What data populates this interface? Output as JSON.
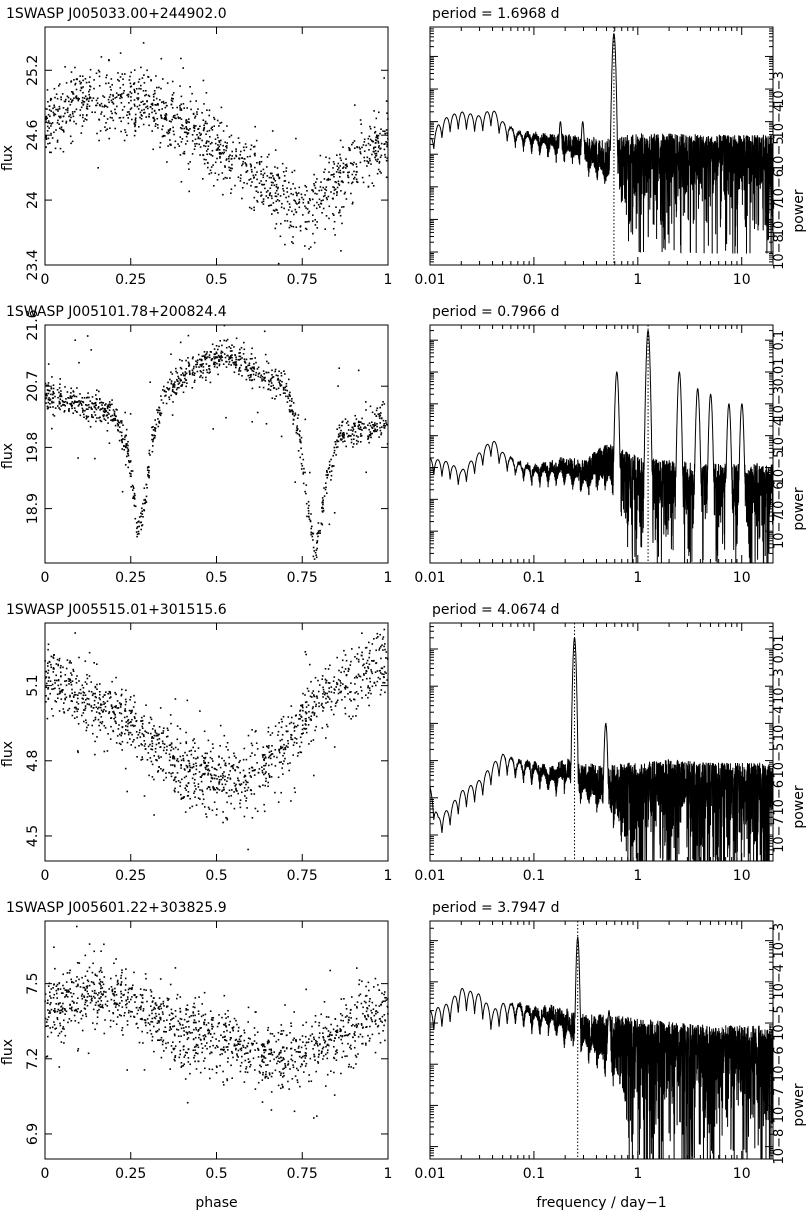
{
  "chart_data": [
    {
      "type": "scatter",
      "title": "1SWASP J005033.00+244902.0",
      "xlabel": "",
      "ylabel": "flux",
      "xlim": [
        0,
        1
      ],
      "ylim": [
        23.4,
        25.6
      ],
      "xticks": [
        "0",
        "0.25",
        "0.5",
        "0.75",
        "1"
      ],
      "yticks": [
        {
          "value": 24.0,
          "label": "24"
        },
        {
          "value": 24.6,
          "label": "24.6"
        },
        {
          "value": 25.2,
          "label": "25.2"
        },
        {
          "value": 23.4,
          "label": "23.4"
        }
      ],
      "series": [
        {
          "trend_x": [
            0.0,
            0.1,
            0.2,
            0.3,
            0.4,
            0.5,
            0.6,
            0.7,
            0.75,
            0.8,
            0.9,
            1.0
          ],
          "trend_y": [
            24.75,
            24.9,
            24.92,
            24.85,
            24.7,
            24.5,
            24.25,
            24.0,
            23.95,
            24.0,
            24.3,
            24.55
          ],
          "scatter": 0.35,
          "n_points": 1300
        }
      ]
    },
    {
      "type": "line",
      "title": "period =    1.6968  d",
      "xlabel": "",
      "ylabel": "power",
      "xscale": "log",
      "yscale": "log",
      "xlim": [
        0.01,
        20
      ],
      "ylim": [
        4e-09,
        0.08
      ],
      "xticks": [
        "0.01",
        "0.1",
        "1",
        "10"
      ],
      "yticks": [
        "10−8",
        "10−7",
        "10−6",
        "10−5",
        "10−4",
        "10−3"
      ],
      "peak_frequency": 0.589,
      "series": [
        {
          "envelope_x": [
            0.01,
            0.012,
            0.015,
            0.02,
            0.03,
            0.04,
            0.05,
            0.07,
            0.1,
            0.15,
            0.2,
            0.3,
            0.5,
            1,
            2,
            5,
            10,
            20
          ],
          "envelope_y": [
            3e-05,
            8e-05,
            0.00015,
            0.0002,
            0.00015,
            0.00025,
            0.0001,
            5e-05,
            4e-05,
            3e-05,
            3e-05,
            2e-05,
            1.5e-05,
            2e-05,
            2e-05,
            1.8e-05,
            1.8e-05,
            1.8e-05
          ],
          "peaks": [
            {
              "x": 0.589,
              "y": 0.05
            },
            {
              "x": 0.295,
              "y": 0.0001
            },
            {
              "x": 0.18,
              "y": 0.0001
            }
          ]
        }
      ]
    },
    {
      "type": "scatter",
      "title": "1SWASP J005101.78+200824.4",
      "xlabel": "",
      "ylabel": "flux",
      "xlim": [
        0,
        1
      ],
      "ylim": [
        18.1,
        21.6
      ],
      "xticks": [
        "0",
        "0.25",
        "0.5",
        "0.75",
        "1"
      ],
      "yticks": [
        {
          "value": 18.9,
          "label": "18.9"
        },
        {
          "value": 19.8,
          "label": "19.8"
        },
        {
          "value": 20.7,
          "label": "20.7"
        },
        {
          "value": 21.6,
          "label": "21.6"
        }
      ],
      "series": [
        {
          "trend_x": [
            0.0,
            0.1,
            0.2,
            0.24,
            0.27,
            0.29,
            0.31,
            0.35,
            0.45,
            0.52,
            0.6,
            0.7,
            0.74,
            0.77,
            0.79,
            0.82,
            0.86,
            0.95,
            1.0
          ],
          "trend_y": [
            20.55,
            20.45,
            20.3,
            19.8,
            18.6,
            18.9,
            19.9,
            20.6,
            21.0,
            21.15,
            20.95,
            20.7,
            20.0,
            18.8,
            18.2,
            19.3,
            20.0,
            20.1,
            20.25
          ],
          "scatter": 0.25,
          "n_points": 1200
        }
      ]
    },
    {
      "type": "line",
      "title": "period =    0.7966  d",
      "xlabel": "",
      "ylabel": "power",
      "xscale": "log",
      "yscale": "log",
      "xlim": [
        0.01,
        20
      ],
      "ylim": [
        1e-08,
        0.3
      ],
      "xticks": [
        "0.01",
        "0.1",
        "1",
        "10"
      ],
      "yticks": [
        "10−7",
        "10−6",
        "10−5",
        "10−4",
        "10−3",
        "0.01",
        "0.1"
      ],
      "peak_frequency": 1.255,
      "series": [
        {
          "envelope_x": [
            0.01,
            0.015,
            0.02,
            0.03,
            0.04,
            0.05,
            0.07,
            0.1,
            0.15,
            0.2,
            0.3,
            0.5,
            1,
            2,
            5,
            10,
            20
          ],
          "envelope_y": [
            2e-05,
            1.5e-05,
            8e-06,
            3e-05,
            8e-05,
            3e-05,
            1.5e-05,
            1e-05,
            1.2e-05,
            1.5e-05,
            1e-05,
            3e-05,
            1e-05,
            8e-06,
            6e-06,
            6e-06,
            6e-06
          ],
          "peaks": [
            {
              "x": 1.255,
              "y": 0.2
            },
            {
              "x": 0.628,
              "y": 0.01
            },
            {
              "x": 2.51,
              "y": 0.01
            },
            {
              "x": 3.77,
              "y": 0.003
            },
            {
              "x": 5.02,
              "y": 0.002
            },
            {
              "x": 7.53,
              "y": 0.001
            },
            {
              "x": 10.04,
              "y": 0.001
            }
          ]
        }
      ]
    },
    {
      "type": "scatter",
      "title": "1SWASP J005515.01+301515.6",
      "xlabel": "",
      "ylabel": "flux",
      "xlim": [
        0,
        1
      ],
      "ylim": [
        4.4,
        5.35
      ],
      "xticks": [
        "0",
        "0.25",
        "0.5",
        "0.75",
        "1"
      ],
      "yticks": [
        {
          "value": 4.5,
          "label": "4.5"
        },
        {
          "value": 4.8,
          "label": "4.8"
        },
        {
          "value": 5.1,
          "label": "5.1"
        }
      ],
      "series": [
        {
          "trend_x": [
            0.0,
            0.05,
            0.1,
            0.2,
            0.3,
            0.4,
            0.5,
            0.58,
            0.65,
            0.72,
            0.8,
            0.9,
            1.0
          ],
          "trend_y": [
            5.15,
            5.1,
            5.05,
            5.0,
            4.88,
            4.78,
            4.72,
            4.7,
            4.8,
            4.9,
            5.05,
            5.12,
            5.2
          ],
          "scatter": 0.15,
          "n_points": 1300
        }
      ]
    },
    {
      "type": "line",
      "title": "period =    4.0674  d",
      "xlabel": "",
      "ylabel": "power",
      "xscale": "log",
      "yscale": "log",
      "xlim": [
        0.01,
        20
      ],
      "ylim": [
        2e-08,
        0.05
      ],
      "xticks": [
        "0.01",
        "0.1",
        "1",
        "10"
      ],
      "yticks": [
        "10−7",
        "10−6",
        "10−5",
        "10−4",
        "10−3",
        "0.01"
      ],
      "peak_frequency": 0.246,
      "series": [
        {
          "envelope_x": [
            0.01,
            0.012,
            0.015,
            0.02,
            0.03,
            0.04,
            0.05,
            0.07,
            0.1,
            0.15,
            0.2,
            0.3,
            0.5,
            1,
            2,
            5,
            10,
            20
          ],
          "envelope_y": [
            2e-06,
            3e-07,
            5e-07,
            1.5e-06,
            3e-06,
            8e-06,
            1.5e-05,
            1e-05,
            8e-06,
            5e-06,
            8e-06,
            5e-06,
            4e-06,
            4e-06,
            5e-06,
            4e-06,
            4e-06,
            4e-06
          ],
          "peaks": [
            {
              "x": 0.246,
              "y": 0.02
            },
            {
              "x": 0.492,
              "y": 0.0001
            }
          ]
        }
      ]
    },
    {
      "type": "scatter",
      "title": "1SWASP J005601.22+303825.9",
      "xlabel": "phase",
      "ylabel": "flux",
      "xlim": [
        0,
        1
      ],
      "ylim": [
        6.8,
        7.75
      ],
      "xticks": [
        "0",
        "0.25",
        "0.5",
        "0.75",
        "1"
      ],
      "yticks": [
        {
          "value": 6.9,
          "label": "6.9"
        },
        {
          "value": 7.2,
          "label": "7.2"
        },
        {
          "value": 7.5,
          "label": "7.5"
        }
      ],
      "series": [
        {
          "trend_x": [
            0.0,
            0.1,
            0.18,
            0.3,
            0.4,
            0.5,
            0.6,
            0.7,
            0.8,
            0.9,
            1.0
          ],
          "trend_y": [
            7.38,
            7.45,
            7.48,
            7.38,
            7.3,
            7.28,
            7.22,
            7.2,
            7.25,
            7.32,
            7.4
          ],
          "scatter": 0.15,
          "n_points": 1300
        }
      ]
    },
    {
      "type": "line",
      "title": "period =    3.7947  d",
      "xlabel": "frequency  /  day−1",
      "ylabel": "power",
      "xscale": "log",
      "yscale": "log",
      "xlim": [
        0.01,
        20
      ],
      "ylim": [
        5e-09,
        0.003
      ],
      "xticks": [
        "0.01",
        "0.1",
        "1",
        "10"
      ],
      "yticks": [
        "10−8",
        "10−7",
        "10−6",
        "10−5",
        "10−4",
        "10−3"
      ],
      "peak_frequency": 0.264,
      "series": [
        {
          "envelope_x": [
            0.01,
            0.015,
            0.02,
            0.03,
            0.04,
            0.05,
            0.07,
            0.1,
            0.15,
            0.2,
            0.3,
            0.5,
            1,
            2,
            5,
            10,
            20
          ],
          "envelope_y": [
            2e-05,
            3e-05,
            7e-05,
            5e-05,
            2e-05,
            3e-05,
            3e-05,
            2e-05,
            2e-05,
            1.5e-05,
            1e-05,
            8e-06,
            6e-06,
            5e-06,
            4e-06,
            4e-06,
            4e-06
          ],
          "peaks": [
            {
              "x": 0.264,
              "y": 0.0012
            },
            {
              "x": 0.528,
              "y": 2e-05
            }
          ]
        }
      ]
    }
  ]
}
